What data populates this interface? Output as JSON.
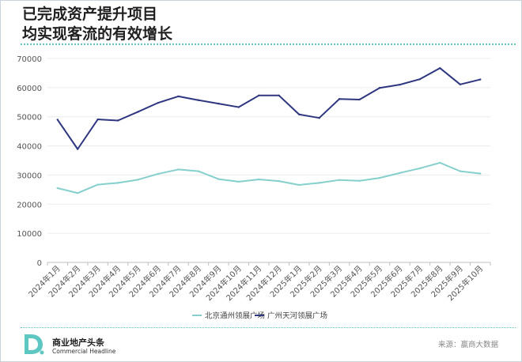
{
  "title": {
    "line1": "已完成资产提升项目",
    "line2": "均实现客流的有效增长"
  },
  "chart_data": {
    "type": "line",
    "categories": [
      "2024年1月",
      "2024年2月",
      "2024年3月",
      "2024年4月",
      "2024年5月",
      "2024年6月",
      "2024年7月",
      "2024年8月",
      "2024年9月",
      "2024年10月",
      "2024年11月",
      "2024年12月",
      "2025年1月",
      "2025年2月",
      "2025年3月",
      "2025年4月",
      "2025年5月",
      "2025年6月",
      "2025年7月",
      "2025年8月",
      "2025年9月",
      "2025年10月"
    ],
    "series": [
      {
        "name": "北京通州领展广场",
        "color": "#85d0cc",
        "values": [
          25500,
          23800,
          26700,
          27300,
          28400,
          30400,
          31900,
          31300,
          28600,
          27700,
          28500,
          27900,
          26600,
          27300,
          28300,
          28000,
          29000,
          30700,
          32300,
          34200,
          31300,
          30500
        ]
      },
      {
        "name": "广州天河领展广场",
        "color": "#2e3680",
        "values": [
          49000,
          38900,
          49100,
          48700,
          51700,
          54800,
          57000,
          55700,
          54500,
          53300,
          57300,
          57300,
          50800,
          49600,
          56100,
          55900,
          59900,
          61000,
          62900,
          66700,
          61100,
          62800
        ]
      }
    ],
    "yticks": [
      0,
      10000,
      20000,
      30000,
      40000,
      50000,
      60000,
      70000
    ],
    "ylim": [
      0,
      70000
    ],
    "grid": true,
    "legend": "bottom-center"
  },
  "footer": {
    "logo_letter": "D.",
    "logo_cn": "商业地产头条",
    "logo_en": "Commercial Headline",
    "source": "来源：赢商大数据"
  }
}
